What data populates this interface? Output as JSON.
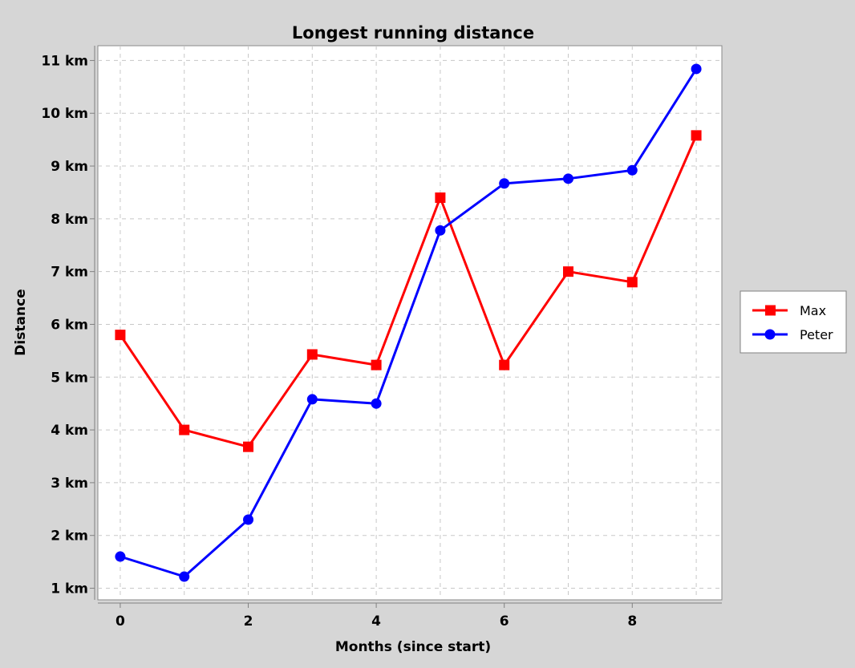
{
  "chart_data": {
    "type": "line",
    "title": "Longest running distance",
    "xlabel": "Months (since start)",
    "ylabel": "Distance",
    "x": [
      0,
      1,
      2,
      3,
      4,
      5,
      6,
      7,
      8,
      9
    ],
    "xlim": [
      -0.35,
      9.4
    ],
    "ylim": [
      0.78,
      11.28
    ],
    "x_ticks": [
      0,
      2,
      4,
      6,
      8
    ],
    "x_tick_labels": [
      "0",
      "2",
      "4",
      "6",
      "8"
    ],
    "y_ticks": [
      1,
      2,
      3,
      4,
      5,
      6,
      7,
      8,
      9,
      10,
      11
    ],
    "y_tick_labels": [
      "1 km",
      "2 km",
      "3 km",
      "4 km",
      "5 km",
      "6 km",
      "7 km",
      "8 km",
      "9 km",
      "10 km",
      "11 km"
    ],
    "grid": true,
    "legend_position": "right",
    "series": [
      {
        "name": "Max",
        "color": "#ff0000",
        "marker": "square",
        "values": [
          5.8,
          4.0,
          3.68,
          5.43,
          5.23,
          8.4,
          5.23,
          7.0,
          6.8,
          9.58
        ]
      },
      {
        "name": "Peter",
        "color": "#0000ff",
        "marker": "circle",
        "values": [
          1.6,
          1.22,
          2.3,
          4.58,
          4.5,
          7.78,
          8.67,
          8.76,
          8.92,
          10.84
        ]
      }
    ]
  }
}
